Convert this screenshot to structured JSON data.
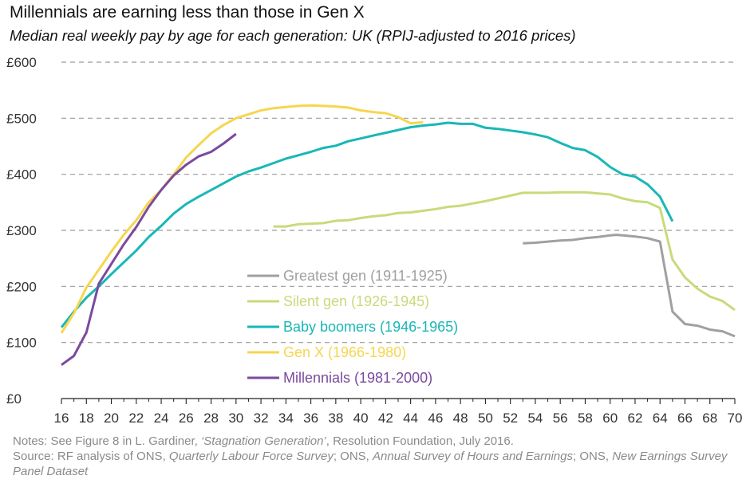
{
  "header": {
    "title": "Millennials are earning less than those in Gen X",
    "subtitle": "Median real weekly pay by age for each generation: UK (RPIJ-adjusted to 2016 prices)"
  },
  "notes": {
    "line1_prefix": "Notes: See Figure 8 in L. Gardiner, ",
    "line1_italic": "‘Stagnation Generation’",
    "line1_suffix": ", Resolution Foundation, July 2016.",
    "line2_prefix": "Source: RF analysis of ONS, ",
    "line2_italic1": "Quarterly Labour Force Survey",
    "line2_mid1": "; ONS, ",
    "line2_italic2": "Annual Survey of Hours and Earnings",
    "line2_mid2": "; ONS, ",
    "line2_italic3": "New Earnings Survey Panel Dataset"
  },
  "chart_data": {
    "type": "line",
    "title": "Millennials are earning less than those in Gen X",
    "subtitle": "Median real weekly pay by age for each generation: UK (RPIJ-adjusted to 2016 prices)",
    "xlabel": "",
    "ylabel": "",
    "xlim": [
      16,
      70
    ],
    "ylim": [
      0,
      600
    ],
    "x_ticks": [
      16,
      18,
      20,
      22,
      24,
      26,
      28,
      30,
      32,
      34,
      36,
      38,
      40,
      42,
      44,
      46,
      48,
      50,
      52,
      54,
      56,
      58,
      60,
      62,
      64,
      66,
      68,
      70
    ],
    "x_minor_ticks": [
      17,
      19,
      21,
      23,
      25,
      27,
      29,
      31,
      33,
      35,
      37,
      39,
      41,
      43,
      45,
      47,
      49,
      51,
      53,
      55,
      57,
      59,
      61,
      63,
      65,
      67,
      69
    ],
    "y_ticks": [
      0,
      100,
      200,
      300,
      400,
      500,
      600
    ],
    "y_tick_labels": [
      "£0",
      "£100",
      "£200",
      "£300",
      "£400",
      "£500",
      "£600"
    ],
    "grid": "horizontal dashed",
    "legend_position": "center",
    "series": [
      {
        "name": "Greatest gen (1911-1925)",
        "color": "#a0a0a0",
        "x": [
          53,
          54,
          55,
          56,
          57,
          58,
          59,
          60,
          60.5,
          61,
          62,
          63,
          64,
          65,
          66,
          67,
          68,
          69,
          70
        ],
        "values": [
          277,
          278,
          280,
          282,
          283,
          286,
          288,
          291,
          292,
          291,
          289,
          286,
          280,
          155,
          133,
          130,
          123,
          120,
          111
        ]
      },
      {
        "name": "Silent gen (1926-1945)",
        "color": "#c7db7c",
        "x": [
          33,
          34,
          35,
          36,
          37,
          38,
          39,
          40,
          41,
          42,
          43,
          44,
          45,
          46,
          47,
          48,
          49,
          50,
          51,
          52,
          53,
          54,
          55,
          56,
          57,
          58,
          59,
          60,
          61,
          62,
          63,
          64,
          65,
          66,
          67,
          68,
          69,
          70
        ],
        "values": [
          307,
          307,
          311,
          312,
          313,
          317,
          318,
          322,
          325,
          327,
          331,
          332,
          335,
          338,
          342,
          344,
          348,
          352,
          357,
          362,
          367,
          367,
          367,
          368,
          368,
          368,
          366,
          364,
          357,
          352,
          350,
          340,
          248,
          216,
          196,
          182,
          174,
          158
        ]
      },
      {
        "name": "Baby boomers (1946-1965)",
        "color": "#19b7b7",
        "x": [
          16,
          17,
          18,
          19,
          20,
          21,
          22,
          23,
          24,
          25,
          26,
          27,
          28,
          29,
          30,
          31,
          32,
          33,
          34,
          35,
          36,
          37,
          38,
          39,
          40,
          41,
          42,
          43,
          44,
          45,
          46,
          47,
          48,
          49,
          50,
          51,
          52,
          53,
          54,
          55,
          56,
          57,
          58,
          59,
          60,
          61,
          62,
          63,
          64,
          65
        ],
        "values": [
          127,
          155,
          180,
          200,
          222,
          243,
          264,
          288,
          308,
          330,
          347,
          360,
          372,
          384,
          396,
          405,
          412,
          420,
          428,
          434,
          440,
          447,
          451,
          459,
          464,
          469,
          474,
          479,
          484,
          487,
          489,
          492,
          490,
          490,
          483,
          481,
          478,
          475,
          471,
          466,
          456,
          447,
          443,
          431,
          413,
          400,
          396,
          382,
          360,
          316
        ]
      },
      {
        "name": "Gen X (1966-1980)",
        "color": "#f6d64f",
        "x": [
          16,
          17,
          18,
          19,
          20,
          21,
          22,
          23,
          24,
          25,
          26,
          27,
          28,
          29,
          30,
          31,
          32,
          33,
          34,
          35,
          36,
          37,
          38,
          39,
          40,
          41,
          42,
          43,
          44,
          45
        ],
        "values": [
          117,
          152,
          198,
          230,
          262,
          292,
          318,
          350,
          372,
          400,
          430,
          452,
          473,
          488,
          500,
          507,
          514,
          518,
          520,
          522,
          523,
          522,
          521,
          519,
          514,
          511,
          509,
          502,
          491,
          493
        ]
      },
      {
        "name": "Millennials (1981-2000)",
        "color": "#7b4a9e",
        "x": [
          16,
          17,
          18,
          19,
          20,
          21,
          22,
          23,
          24,
          25,
          26,
          27,
          28,
          29,
          30
        ],
        "values": [
          60,
          76,
          118,
          205,
          240,
          275,
          306,
          342,
          372,
          398,
          417,
          432,
          440,
          455,
          472
        ]
      }
    ]
  }
}
